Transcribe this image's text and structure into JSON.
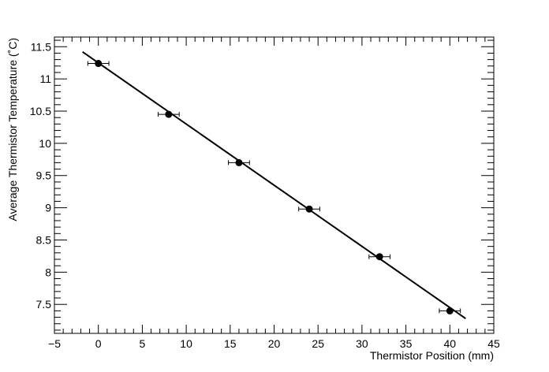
{
  "chart_data": {
    "type": "scatter",
    "title": "",
    "xlabel": "Thermistor Position (mm)",
    "ylabel": "Average Thermistor Temperature (˚C)",
    "xlim": [
      -5,
      45
    ],
    "ylim": [
      7.05,
      11.65
    ],
    "x_ticks": [
      "−5",
      "0",
      "5",
      "10",
      "15",
      "20",
      "25",
      "30",
      "35",
      "40",
      "45"
    ],
    "y_ticks": [
      "7.5",
      "8",
      "8.5",
      "9",
      "9.5",
      "10",
      "10.5",
      "11",
      "11.5"
    ],
    "grid": false,
    "legend": "none",
    "series": [
      {
        "points": [
          {
            "x": 0,
            "y": 11.24,
            "xerr": 1.2
          },
          {
            "x": 8,
            "y": 10.45,
            "xerr": 1.2
          },
          {
            "x": 16,
            "y": 9.7,
            "xerr": 1.2
          },
          {
            "x": 24,
            "y": 8.98,
            "xerr": 1.2
          },
          {
            "x": 32,
            "y": 8.24,
            "xerr": 1.2
          },
          {
            "x": 40,
            "y": 7.4,
            "xerr": 1.2
          }
        ]
      }
    ],
    "fit_line": {
      "x": [
        -1.8,
        41.8
      ],
      "y": [
        11.42,
        7.28
      ]
    },
    "colors": {
      "markers": "#000000",
      "line": "#000000",
      "background": "#ffffff"
    }
  }
}
